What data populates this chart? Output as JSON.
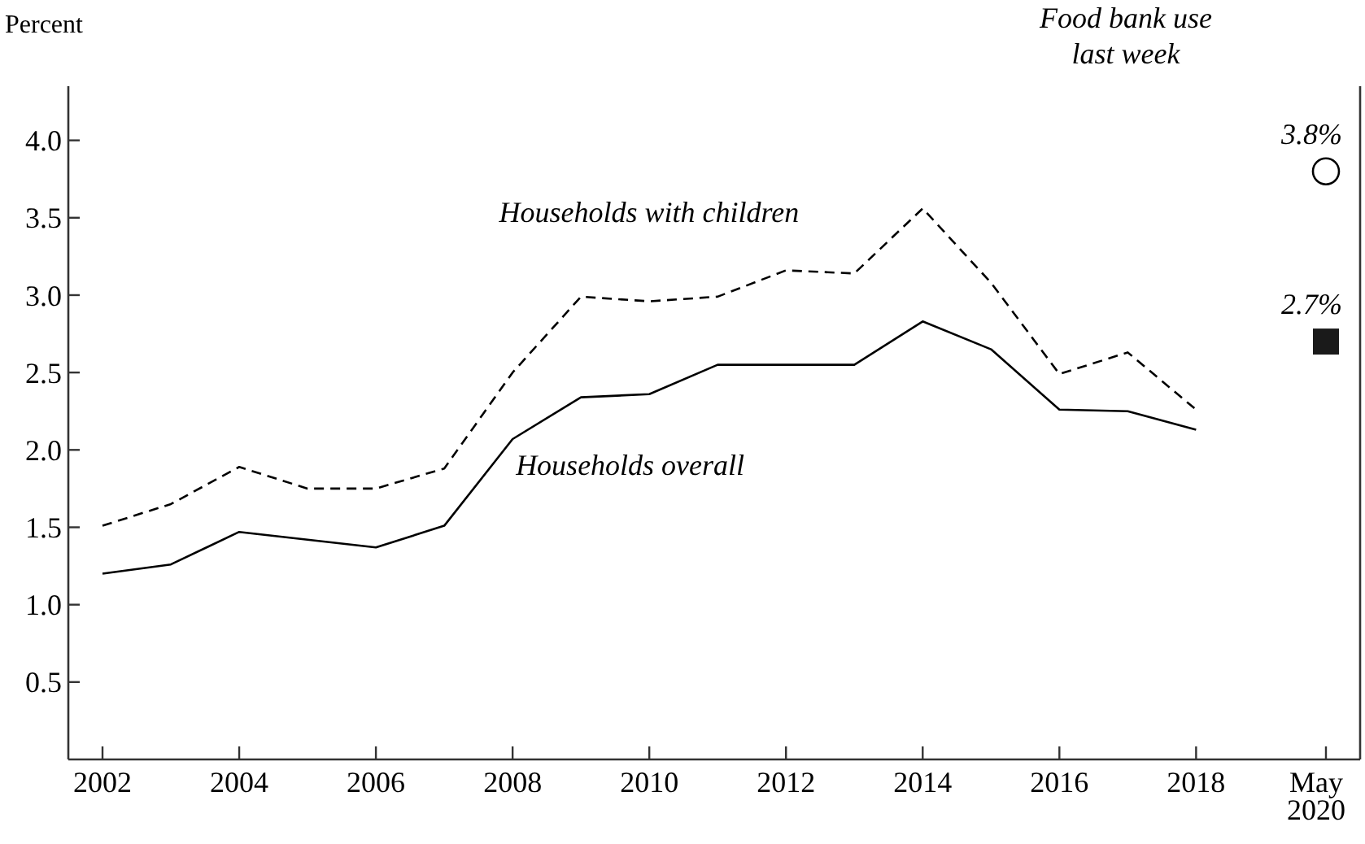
{
  "chart_data": {
    "type": "line",
    "ylabel": "Percent",
    "xlim": [
      2001.5,
      2020.4
    ],
    "ylim": [
      0,
      4.35
    ],
    "xticks": [
      2002,
      2004,
      2006,
      2008,
      2010,
      2012,
      2014,
      2016,
      2018,
      {
        "value": 2019.9,
        "label": "May 2020"
      }
    ],
    "yticks": [
      {
        "value": 0.5,
        "label": "0.5"
      },
      {
        "value": 1,
        "label": "1.0"
      },
      {
        "value": 1.5,
        "label": "1.5"
      },
      {
        "value": 2,
        "label": "2.0"
      },
      {
        "value": 2.5,
        "label": "2.5"
      },
      {
        "value": 3,
        "label": "3.0"
      },
      {
        "value": 3.5,
        "label": "3.5"
      },
      {
        "value": 4,
        "label": "4.0"
      }
    ],
    "grid": false,
    "annotations": [
      "Food bank use last week"
    ],
    "series": [
      {
        "name": "Households with children",
        "line_style": "dashed",
        "color": "#000000",
        "x": [
          2002,
          2003,
          2004,
          2005,
          2006,
          2007,
          2008,
          2009,
          2010,
          2011,
          2012,
          2013,
          2014,
          2015,
          2016,
          2017,
          2018
        ],
        "values": [
          1.51,
          1.65,
          1.89,
          1.75,
          1.75,
          1.88,
          2.5,
          2.99,
          2.96,
          2.99,
          3.16,
          3.14,
          3.56,
          3.08,
          2.49,
          2.63,
          2.26
        ]
      },
      {
        "name": "Households overall",
        "line_style": "solid",
        "color": "#000000",
        "x": [
          2002,
          2003,
          2004,
          2005,
          2006,
          2007,
          2008,
          2009,
          2010,
          2011,
          2012,
          2013,
          2014,
          2015,
          2016,
          2017,
          2018
        ],
        "values": [
          1.2,
          1.26,
          1.47,
          1.42,
          1.37,
          1.51,
          2.07,
          2.34,
          2.36,
          2.55,
          2.55,
          2.55,
          2.83,
          2.65,
          2.26,
          2.25,
          2.13
        ]
      },
      {
        "type": "scatter",
        "marker": "circle",
        "color": "#000000",
        "x": [
          2019.9
        ],
        "values": [
          3.8
        ],
        "value_labels": [
          "3.8%"
        ]
      },
      {
        "type": "scatter",
        "marker": "square",
        "color": "#1a1a1a",
        "x": [
          2019.9
        ],
        "values": [
          2.7
        ],
        "value_labels": [
          "2.7%"
        ]
      }
    ]
  }
}
